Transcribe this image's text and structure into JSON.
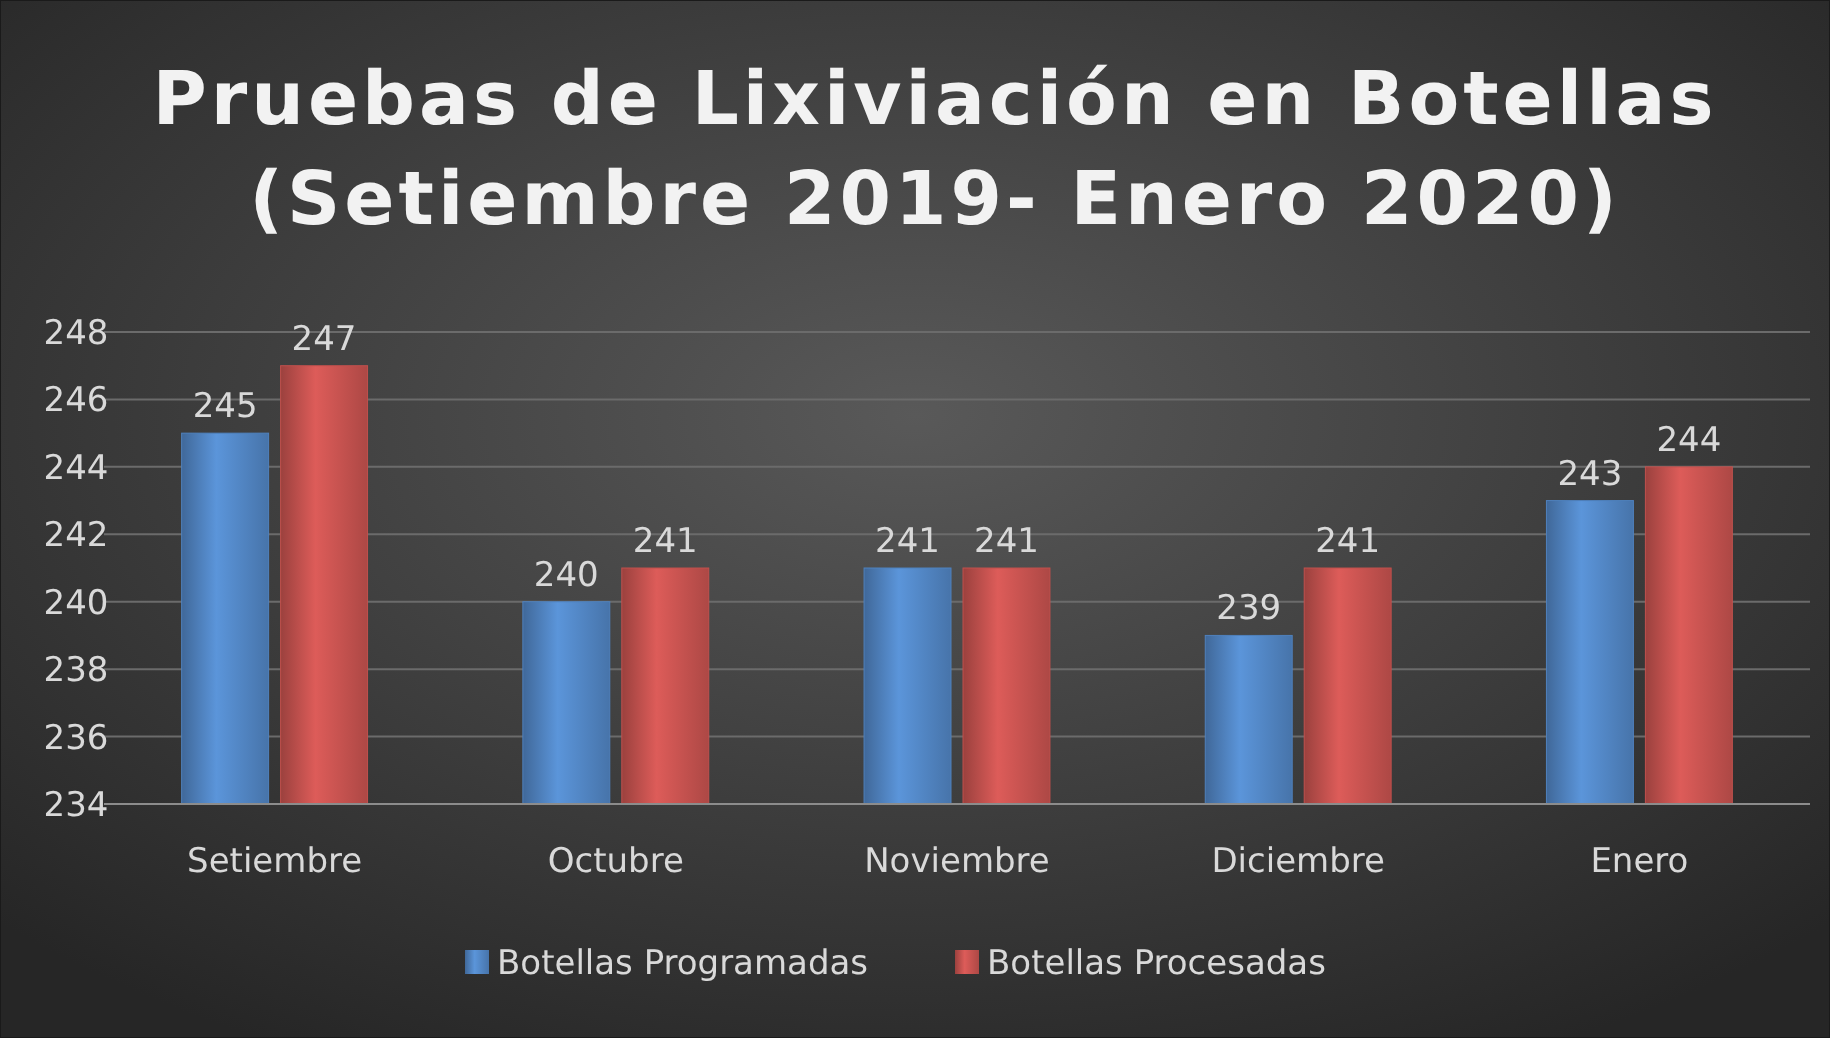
{
  "chart_data": {
    "type": "bar",
    "title": "Pruebas de Lixiviación en Botellas (Setiembre 2019- Enero 2020)",
    "categories": [
      "Setiembre",
      "Octubre",
      "Noviembre",
      "Diciembre",
      "Enero"
    ],
    "series": [
      {
        "name": "Botellas Programadas",
        "color": "#4f81bd",
        "values": [
          245,
          240,
          241,
          239,
          243
        ]
      },
      {
        "name": "Botellas Procesadas",
        "color": "#c0504d",
        "values": [
          247,
          241,
          241,
          241,
          244
        ]
      }
    ],
    "ylim": [
      234,
      248
    ],
    "yticks": [
      234,
      236,
      238,
      240,
      242,
      244,
      246,
      248
    ],
    "grid": "y",
    "data_labels": true,
    "legend": "bottom"
  }
}
